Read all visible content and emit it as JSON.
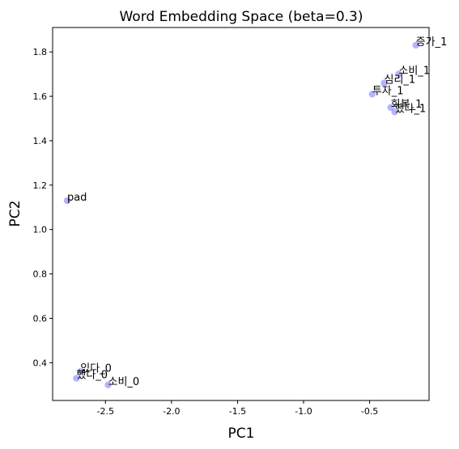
{
  "chart_data": {
    "type": "scatter",
    "title": "Word Embedding Space (beta=0.3)",
    "xlabel": "PC1",
    "ylabel": "PC2",
    "xlim": [
      -2.9,
      -0.05
    ],
    "ylim": [
      0.23,
      1.91
    ],
    "xticks": [
      -2.5,
      -2.0,
      -1.5,
      -1.0,
      -0.5
    ],
    "xtick_labels": [
      "-2.5",
      "-2.0",
      "-1.5",
      "-1.0",
      "-0.5"
    ],
    "yticks": [
      0.4,
      0.6,
      0.8,
      1.0,
      1.2,
      1.4,
      1.6,
      1.8
    ],
    "ytick_labels": [
      "0.4",
      "0.6",
      "0.8",
      "1.0",
      "1.2",
      "1.4",
      "1.6",
      "1.8"
    ],
    "grid": false,
    "marker_color": "#8080ff",
    "points": [
      {
        "label": "증가_1",
        "x": -0.15,
        "y": 1.83
      },
      {
        "label": "소비_1",
        "x": -0.28,
        "y": 1.7
      },
      {
        "label": "심리_1",
        "x": -0.39,
        "y": 1.66
      },
      {
        "label": "투자_1",
        "x": -0.48,
        "y": 1.61
      },
      {
        "label": "회복_1",
        "x": -0.34,
        "y": 1.55
      },
      {
        "label": "했다_1",
        "x": -0.31,
        "y": 1.53
      },
      {
        "label": "pad",
        "x": -2.79,
        "y": 1.13
      },
      {
        "label": "있다_0",
        "x": -2.69,
        "y": 0.36
      },
      {
        "label": "했다_0",
        "x": -2.72,
        "y": 0.33
      },
      {
        "label": "소비_0",
        "x": -2.48,
        "y": 0.3
      }
    ]
  }
}
